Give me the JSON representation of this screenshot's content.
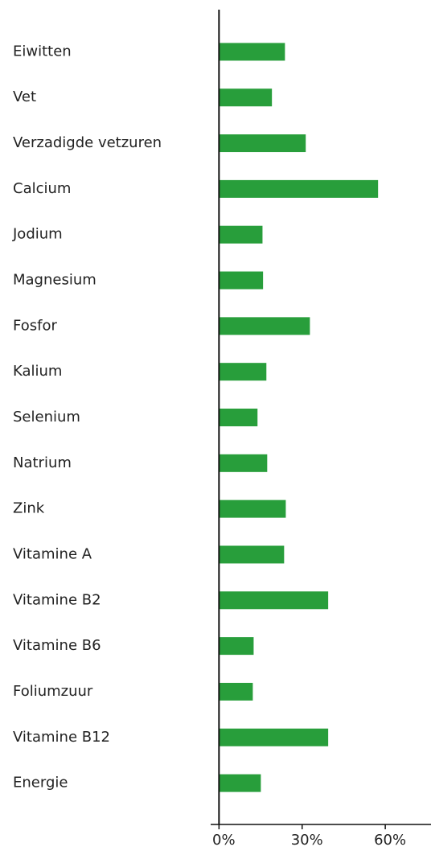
{
  "chart_data": {
    "type": "barh",
    "categories": [
      "Eiwitten",
      "Vet",
      "Verzadigde vetzuren",
      "Calcium",
      "Jodium",
      "Magnesium",
      "Fosfor",
      "Kalium",
      "Selenium",
      "Natrium",
      "Zink",
      "Vitamine A",
      "Vitamine B2",
      "Vitamine B6",
      "Foliumzuur",
      "Vitamine B12",
      "Energie"
    ],
    "values": [
      23.8,
      19.1,
      31.3,
      57.4,
      15.7,
      15.9,
      32.8,
      17.1,
      13.9,
      17.4,
      24.1,
      23.5,
      39.4,
      12.5,
      12.2,
      39.4,
      15.1
    ],
    "color": "#289e3b",
    "xlim": [
      -3,
      76.5
    ],
    "xticks": [
      {
        "value": 0,
        "label": "0%"
      },
      {
        "value": 30,
        "label": "30%"
      },
      {
        "value": 60,
        "label": "60%"
      }
    ]
  }
}
